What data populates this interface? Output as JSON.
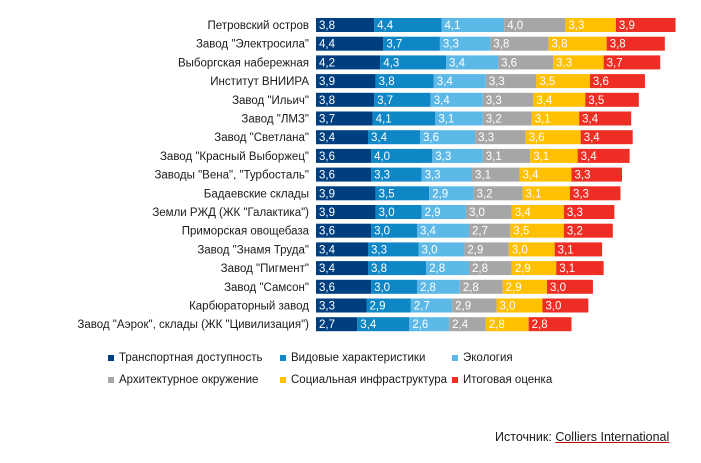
{
  "chart_data": {
    "type": "bar",
    "orientation": "horizontal",
    "stacked": true,
    "categories": [
      "Петровский остров",
      "Завод \"Электросила\"",
      "Выборгская набережная",
      "Институт ВНИИРА",
      "Завод \"Ильич\"",
      "Завод \"ЛМЗ\"",
      "Завод \"Светлана\"",
      "Завод \"Красный Выборжец\"",
      "Заводы \"Вена\", \"Турбосталь\"",
      "Бадаевские склады",
      "Земли РЖД (ЖК \"Галактика\")",
      "Приморская овощебаза",
      "Завод \"Знамя Труда\"",
      "Завод \"Пигмент\"",
      "Завод \"Самсон\"",
      "Карбюраторный завод",
      "Завод \"Аэрок\", склады (ЖК \"Цивилизация\")"
    ],
    "series": [
      {
        "name": "Транспортная доступность",
        "color": "#003f7f",
        "values": [
          3.8,
          4.4,
          4.2,
          3.9,
          3.8,
          3.7,
          3.4,
          3.6,
          3.6,
          3.9,
          3.9,
          3.6,
          3.4,
          3.4,
          3.6,
          3.3,
          2.7
        ]
      },
      {
        "name": "Видовые характеристики",
        "color": "#0f86c6",
        "values": [
          4.4,
          3.7,
          4.3,
          3.8,
          3.7,
          4.1,
          3.4,
          4.0,
          3.3,
          3.5,
          3.0,
          3.0,
          3.3,
          3.8,
          3.0,
          2.9,
          3.4
        ]
      },
      {
        "name": "Экология",
        "color": "#5cb8e6",
        "values": [
          4.1,
          3.3,
          3.4,
          3.4,
          3.4,
          3.1,
          3.6,
          3.3,
          3.3,
          2.9,
          2.9,
          3.4,
          3.0,
          2.8,
          2.8,
          2.7,
          2.6
        ]
      },
      {
        "name": "Архитектурное окружение",
        "color": "#a6a6a6",
        "values": [
          4.0,
          3.8,
          3.6,
          3.3,
          3.3,
          3.2,
          3.3,
          3.1,
          3.1,
          3.2,
          3.0,
          2.7,
          2.9,
          2.8,
          2.8,
          2.9,
          2.4
        ]
      },
      {
        "name": "Социальная инфраструктура",
        "color": "#ffc000",
        "values": [
          3.3,
          3.8,
          3.3,
          3.5,
          3.4,
          3.1,
          3.6,
          3.1,
          3.4,
          3.1,
          3.4,
          3.5,
          3.0,
          2.9,
          2.9,
          3.0,
          2.8
        ]
      },
      {
        "name": "Итоговая оценка",
        "color": "#ee2e24",
        "values": [
          3.9,
          3.8,
          3.7,
          3.6,
          3.5,
          3.4,
          3.4,
          3.4,
          3.3,
          3.3,
          3.3,
          3.2,
          3.1,
          3.1,
          3.0,
          3.0,
          2.8
        ]
      }
    ],
    "legend_position": "bottom",
    "grid": false,
    "axes_visible": false,
    "value_labels_color": "#ffffff"
  },
  "source": {
    "label": "Источник:",
    "name": "Colliers International"
  }
}
